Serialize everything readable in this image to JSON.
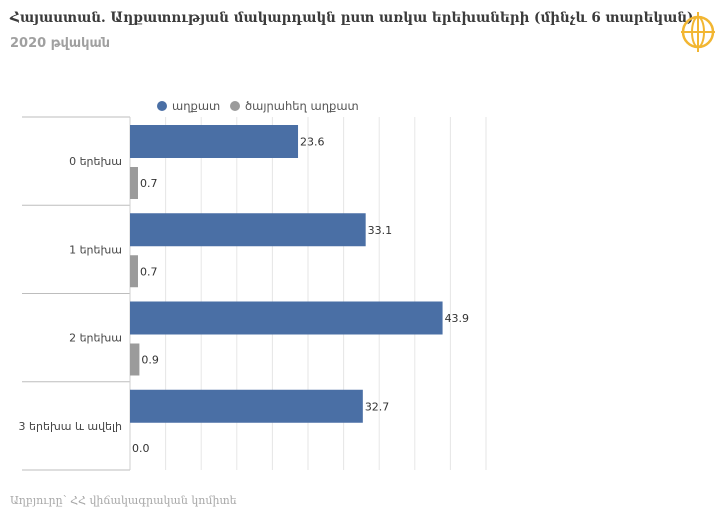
{
  "header": {
    "title": "Հայաստան. Աղքատության մակարդակն ըստ առկա երեխաների (մինչև 6 տարեկան)",
    "subtitle": "2020 թվական"
  },
  "footer": {
    "source": "Աղբյուրը՝ ՀՀ վիճակագրական կոմիտե"
  },
  "colors": {
    "series_primary": "#4a6fa5",
    "series_secondary": "#9b9b9b",
    "logo_accent": "#f2b632"
  },
  "icons": {
    "logo": "globe-logo-icon"
  },
  "chart_data": {
    "type": "bar",
    "orientation": "horizontal",
    "categories": [
      "0 երեխա",
      "1 երեխա",
      "2 երեխա",
      "3 երեխա և ավելի"
    ],
    "series": [
      {
        "name": "աղքատ",
        "values": [
          23.6,
          33.1,
          43.9,
          32.7
        ]
      },
      {
        "name": "ծայրահեղ աղքատ",
        "values": [
          0.7,
          0.7,
          0.9,
          0.0
        ]
      }
    ],
    "xlim": [
      0,
      50
    ],
    "grid": true,
    "legend_position": "top"
  }
}
